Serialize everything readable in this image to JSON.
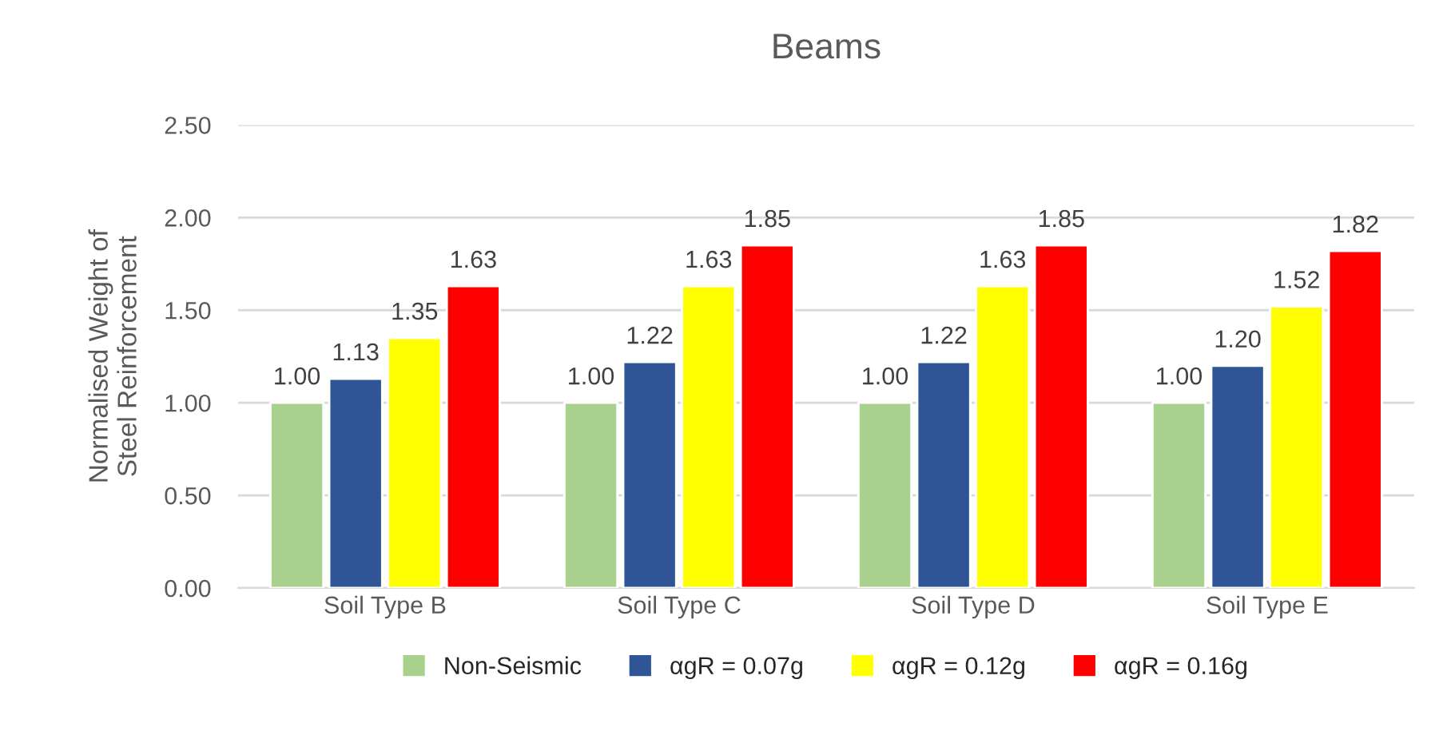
{
  "chart_data": {
    "type": "bar",
    "title": "Beams",
    "ylabel": "Normalised Weight of\nSteel Reinforcement",
    "categories": [
      "Soil Type B",
      "Soil Type C",
      "Soil Type D",
      "Soil Type E"
    ],
    "series": [
      {
        "name": "Non-Seismic",
        "color": "#a9d18e",
        "values": [
          1.0,
          1.0,
          1.0,
          1.0
        ],
        "value_labels": [
          "1.00",
          "1.00",
          "1.00",
          "1.00"
        ]
      },
      {
        "name": "αgR = 0.07g",
        "color": "#2f5597",
        "values": [
          1.13,
          1.22,
          1.22,
          1.2
        ],
        "value_labels": [
          "1.13",
          "1.22",
          "1.22",
          "1.20"
        ]
      },
      {
        "name": "αgR = 0.12g",
        "color": "#ffff00",
        "values": [
          1.35,
          1.63,
          1.63,
          1.52
        ],
        "value_labels": [
          "1.35",
          "1.63",
          "1.63",
          "1.52"
        ]
      },
      {
        "name": "αgR = 0.16g",
        "color": "#ff0000",
        "values": [
          1.63,
          1.85,
          1.85,
          1.82
        ],
        "value_labels": [
          "1.63",
          "1.85",
          "1.85",
          "1.82"
        ]
      }
    ],
    "ylim": [
      0,
      2.5
    ],
    "yticks": [
      {
        "value": 0,
        "label": "0.00"
      },
      {
        "value": 0.5,
        "label": "0.50"
      },
      {
        "value": 1,
        "label": "1.00"
      },
      {
        "value": 1.5,
        "label": "1.50"
      },
      {
        "value": 2,
        "label": "2.00"
      },
      {
        "value": 2.5,
        "label": "2.50"
      }
    ],
    "grid": "y",
    "legend": "bottom"
  }
}
